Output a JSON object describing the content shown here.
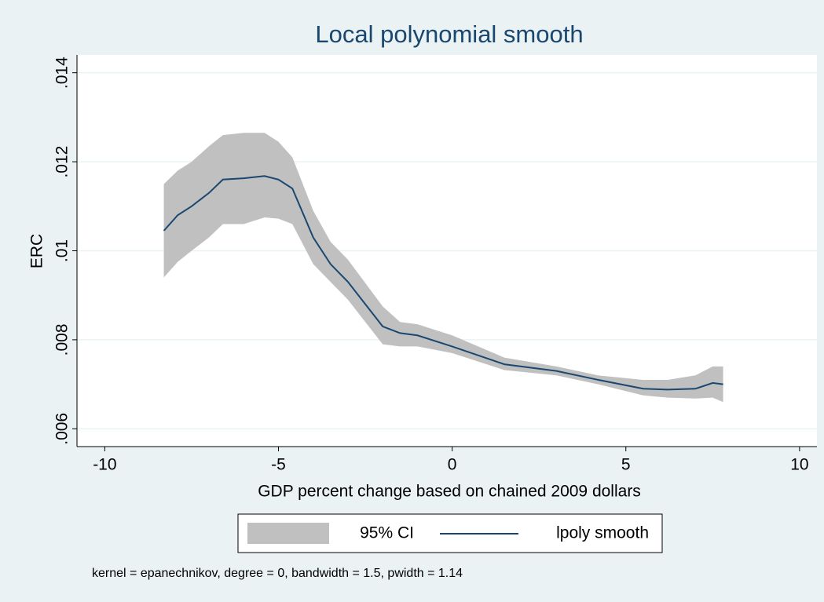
{
  "chart_data": {
    "type": "line",
    "title": "Local polynomial smooth",
    "x_label": "GDP percent change based on chained 2009 dollars",
    "y_label": "ERC",
    "note": "kernel = epanechnikov, degree = 0, bandwidth = 1.5, pwidth = 1.14",
    "x": [
      -8.3,
      -7.9,
      -7.5,
      -7.0,
      -6.6,
      -6.0,
      -5.4,
      -5.0,
      -4.6,
      -4.0,
      -3.5,
      -3.0,
      -2.0,
      -1.5,
      -1.0,
      0,
      1.5,
      3.0,
      4.2,
      5.5,
      6.2,
      7.0,
      7.5,
      7.8
    ],
    "band": {
      "name": "95% CI",
      "color": "#c0c0c0",
      "lower": [
        0.0094,
        0.00975,
        0.01,
        0.0103,
        0.0106,
        0.0106,
        0.01075,
        0.01072,
        0.0106,
        0.0097,
        0.0093,
        0.0089,
        0.0079,
        0.00785,
        0.00785,
        0.0077,
        0.00732,
        0.0072,
        0.007,
        0.00675,
        0.0067,
        0.00668,
        0.0067,
        0.0066
      ],
      "upper": [
        0.0115,
        0.0118,
        0.012,
        0.01235,
        0.0126,
        0.01265,
        0.01265,
        0.01245,
        0.0121,
        0.0109,
        0.0102,
        0.0098,
        0.00875,
        0.0084,
        0.00835,
        0.0081,
        0.0076,
        0.0074,
        0.0072,
        0.0071,
        0.0071,
        0.0072,
        0.0074,
        0.0074
      ]
    },
    "series": [
      {
        "name": "lpoly smooth",
        "color": "#1a476f",
        "values": [
          0.01045,
          0.0108,
          0.011,
          0.0113,
          0.0116,
          0.01163,
          0.01168,
          0.0116,
          0.0114,
          0.0103,
          0.0097,
          0.0093,
          0.0083,
          0.00815,
          0.0081,
          0.00785,
          0.00745,
          0.0073,
          0.0071,
          0.0069,
          0.00688,
          0.0069,
          0.00703,
          0.007
        ]
      }
    ],
    "xlim": [
      -10.8,
      10.5
    ],
    "ylim": [
      0.0056,
      0.0144
    ],
    "xticks": [
      -10,
      -5,
      0,
      5,
      10
    ],
    "yticks": [
      {
        "value": 0.006,
        "label": ".006"
      },
      {
        "value": 0.008,
        "label": ".008"
      },
      {
        "value": 0.01,
        "label": ".01"
      },
      {
        "value": 0.012,
        "label": ".012"
      },
      {
        "value": 0.014,
        "label": ".014"
      }
    ],
    "grid": true,
    "legend": "bottom"
  }
}
